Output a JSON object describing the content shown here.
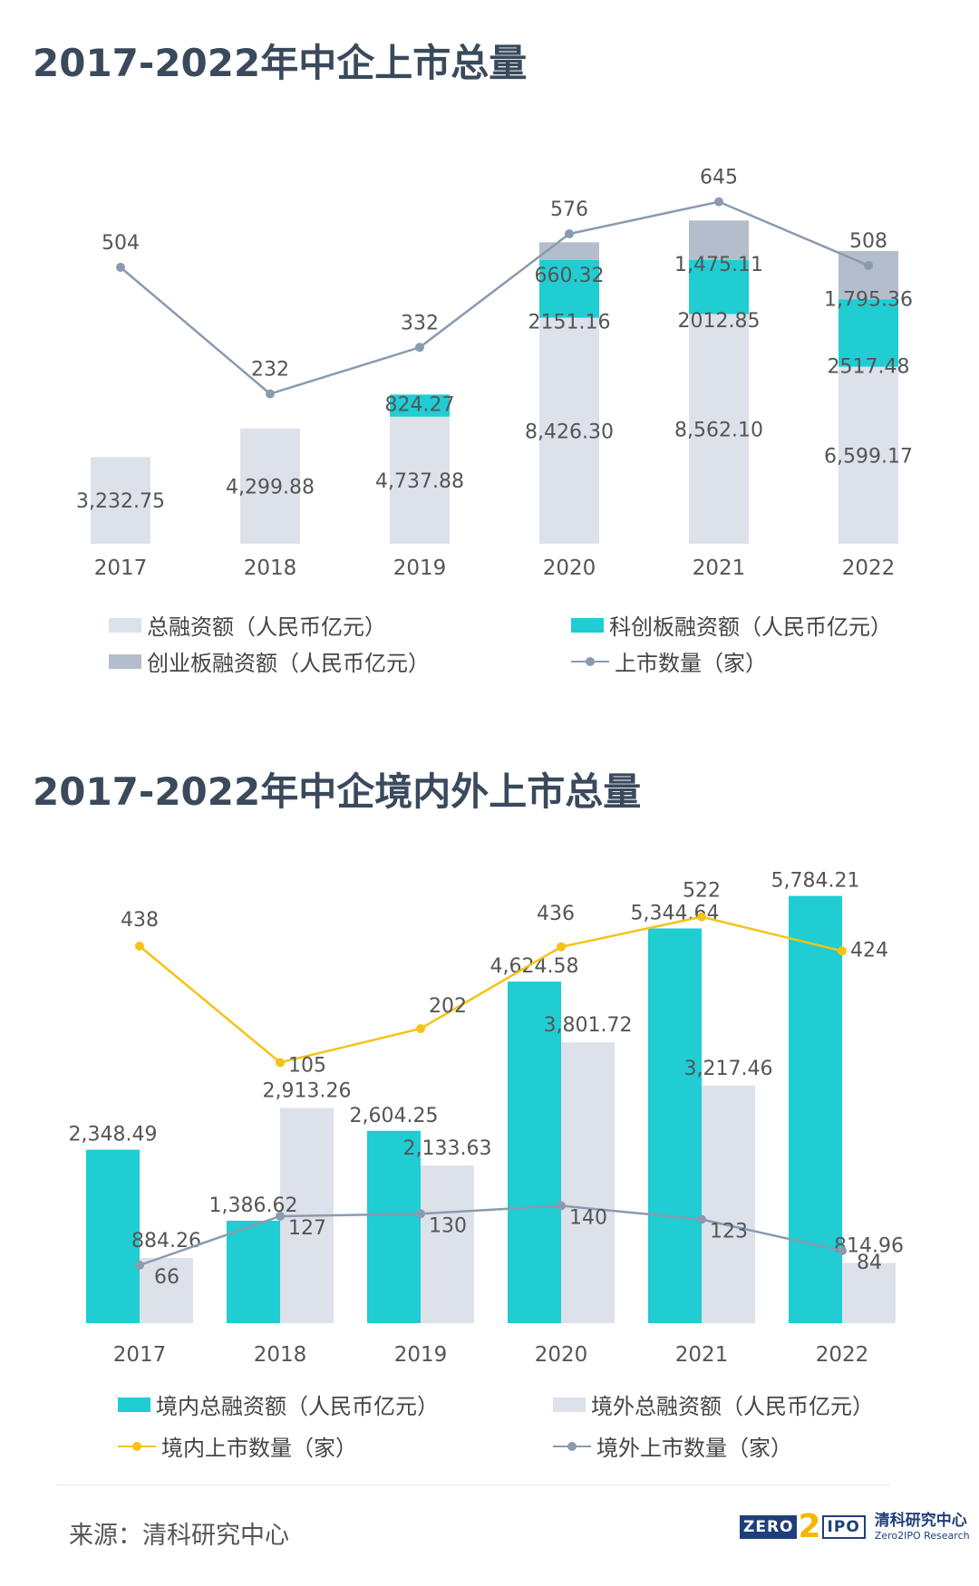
{
  "header": {
    "title1": "2017-2022年中企上市总量",
    "title2": "2017-2022年中企境内外上市总量"
  },
  "colors": {
    "total": "#dde1ea",
    "kcb": "#1fcdd3",
    "cyb": "#b4bdcc",
    "line_gray": "#8a9bb0",
    "line_yellow": "#f5c314",
    "text": "#555555"
  },
  "chart_data": [
    {
      "type": "bar",
      "stacked": true,
      "title": "2017-2022年中企上市总量",
      "categories": [
        "2017",
        "2018",
        "2019",
        "2020",
        "2021",
        "2022"
      ],
      "series": [
        {
          "name": "总融资额（人民币亿元）",
          "kind": "bar",
          "color": "#dde1ea",
          "values": [
            3232.75,
            4299.88,
            4737.88,
            8426.3,
            8562.1,
            6599.17
          ],
          "labels": [
            "3,232.75",
            "4,299.88",
            "4,737.88",
            "8,426.30",
            "8,562.10",
            "6,599.17"
          ]
        },
        {
          "name": "科创板融资额（人民币亿元）",
          "kind": "bar",
          "color": "#1fcdd3",
          "values": [
            null,
            null,
            824.27,
            2151.16,
            2012.85,
            2517.48
          ],
          "labels": [
            "",
            "",
            "824.27",
            "2151.16",
            "2012.85",
            "2517.48"
          ]
        },
        {
          "name": "创业板融资额（人民币亿元）",
          "kind": "bar",
          "color": "#b4bdcc",
          "values": [
            null,
            null,
            null,
            660.32,
            1475.11,
            1795.36
          ],
          "labels": [
            "",
            "",
            "",
            "660.32",
            "1,475.11",
            "1,795.36"
          ]
        },
        {
          "name": "上市数量（家）",
          "kind": "line",
          "color": "#8a9bb0",
          "values": [
            504,
            232,
            332,
            576,
            645,
            508
          ],
          "labels": [
            "504",
            "232",
            "332",
            "576",
            "645",
            "508"
          ]
        }
      ],
      "legend_position": "bottom",
      "grid": false
    },
    {
      "type": "bar",
      "stacked": false,
      "title": "2017-2022年中企境内外上市总量",
      "categories": [
        "2017",
        "2018",
        "2019",
        "2020",
        "2021",
        "2022"
      ],
      "series": [
        {
          "name": "境内总融资额（人民币亿元）",
          "kind": "bar",
          "color": "#1fcdd3",
          "values": [
            2348.49,
            1386.62,
            2604.25,
            4624.58,
            5344.64,
            5784.21
          ],
          "labels": [
            "2,348.49",
            "1,386.62",
            "2,604.25",
            "4,624.58",
            "5,344.64",
            "5,784.21"
          ]
        },
        {
          "name": "境外总融资额（人民币亿元）",
          "kind": "bar",
          "color": "#dde1ea",
          "values": [
            884.26,
            2913.26,
            2133.63,
            3801.72,
            3217.46,
            814.96
          ],
          "labels": [
            "884.26",
            "2,913.26",
            "2,133.63",
            "3,801.72",
            "3,217.46",
            "814.96"
          ]
        },
        {
          "name": "境内上市数量（家）",
          "kind": "line",
          "color": "#f5c314",
          "values": [
            438,
            105,
            202,
            436,
            522,
            424
          ],
          "labels": [
            "438",
            "105",
            "202",
            "436",
            "522",
            "424"
          ]
        },
        {
          "name": "境外上市数量（家）",
          "kind": "line",
          "color": "#8a9bb0",
          "values": [
            66,
            127,
            130,
            140,
            123,
            84
          ],
          "labels": [
            "66",
            "127",
            "130",
            "140",
            "123",
            "84"
          ]
        }
      ],
      "legend_position": "bottom",
      "grid": false
    }
  ],
  "footer": {
    "source": "来源：清科研究中心",
    "logo_zero": "ZERO",
    "logo_two": "2",
    "logo_ipo": "IPO",
    "logo_cn": "清科研究中心",
    "logo_en": "Zero2IPO Research"
  }
}
